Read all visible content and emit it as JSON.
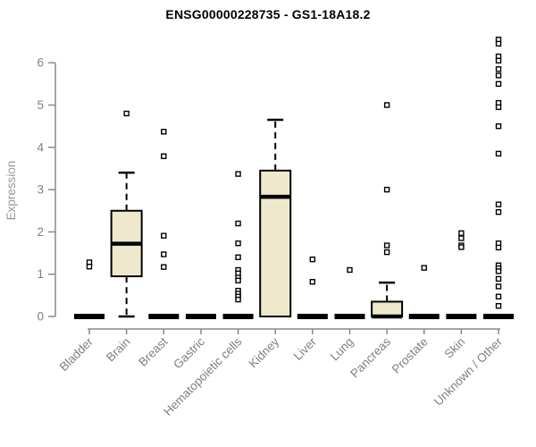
{
  "title": "ENSG00000228735 - GS1-18A18.2",
  "chart_data": {
    "type": "boxplot",
    "title": "ENSG00000228735 - GS1-18A18.2",
    "xlabel": "",
    "ylabel": "Expression",
    "ylim": [
      0,
      6.6
    ],
    "yticks": [
      0,
      1,
      2,
      3,
      4,
      5,
      6
    ],
    "grid": false,
    "legend": false,
    "box_fill": "#EEE8CD",
    "box_stroke": "#000000",
    "axis_color": "#898989",
    "tick_label_color": "#808080",
    "ylabel_color": "#999999",
    "categories": [
      "Bladder",
      "Brain",
      "Breast",
      "Gastric",
      "Hematopoietic cells",
      "Kidney",
      "Liver",
      "Lung",
      "Pancreas",
      "Prostate",
      "Skin",
      "Unknown / Other"
    ],
    "series": [
      {
        "label": "Bladder",
        "q1": 0,
        "median": 0,
        "q3": 0,
        "whisker_low": 0,
        "whisker_high": 0,
        "outliers": [
          1.28,
          1.18
        ]
      },
      {
        "label": "Brain",
        "q1": 0.95,
        "median": 1.72,
        "q3": 2.5,
        "whisker_low": 0,
        "whisker_high": 3.4,
        "outliers": [
          4.8
        ]
      },
      {
        "label": "Breast",
        "q1": 0,
        "median": 0,
        "q3": 0,
        "whisker_low": 0,
        "whisker_high": 0,
        "outliers": [
          4.37,
          3.79,
          1.91,
          1.47,
          1.17
        ]
      },
      {
        "label": "Gastric",
        "q1": 0,
        "median": 0,
        "q3": 0,
        "whisker_low": 0,
        "whisker_high": 0,
        "outliers": []
      },
      {
        "label": "Hematopoietic cells",
        "q1": 0,
        "median": 0,
        "q3": 0,
        "whisker_low": 0,
        "whisker_high": 0,
        "outliers": [
          3.37,
          2.2,
          1.73,
          1.4,
          1.1,
          1.02,
          0.92,
          0.85,
          0.61,
          0.54,
          0.47,
          0.4
        ]
      },
      {
        "label": "Kidney",
        "q1": 0,
        "median": 2.83,
        "q3": 3.45,
        "whisker_low": 0,
        "whisker_high": 4.65,
        "outliers": []
      },
      {
        "label": "Liver",
        "q1": 0,
        "median": 0,
        "q3": 0,
        "whisker_low": 0,
        "whisker_high": 0,
        "outliers": [
          1.35,
          0.82
        ]
      },
      {
        "label": "Lung",
        "q1": 0,
        "median": 0,
        "q3": 0,
        "whisker_low": 0,
        "whisker_high": 0,
        "outliers": [
          1.1
        ]
      },
      {
        "label": "Pancreas",
        "q1": 0,
        "median": 0,
        "q3": 0.35,
        "whisker_low": 0,
        "whisker_high": 0.8,
        "outliers": [
          5.0,
          3.0,
          1.68,
          1.52
        ]
      },
      {
        "label": "Prostate",
        "q1": 0,
        "median": 0,
        "q3": 0,
        "whisker_low": 0,
        "whisker_high": 0,
        "outliers": [
          1.15
        ]
      },
      {
        "label": "Skin",
        "q1": 0,
        "median": 0,
        "q3": 0,
        "whisker_low": 0,
        "whisker_high": 0,
        "outliers": [
          1.97,
          1.85,
          1.68,
          1.64
        ]
      },
      {
        "label": "Unknown / Other",
        "q1": 0,
        "median": 0,
        "q3": 0,
        "whisker_low": 0,
        "whisker_high": 0,
        "outliers": [
          6.55,
          6.45,
          6.15,
          6.05,
          5.85,
          5.7,
          5.5,
          5.05,
          4.95,
          4.5,
          3.85,
          2.65,
          2.47,
          1.73,
          1.63,
          1.21,
          1.14,
          1.07,
          0.89,
          0.71,
          0.47,
          0.25
        ]
      }
    ]
  }
}
